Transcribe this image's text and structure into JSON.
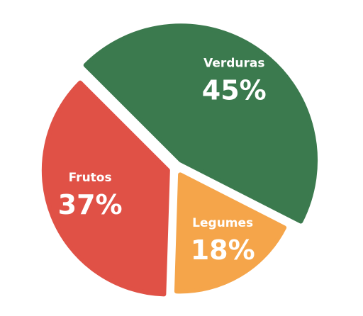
{
  "chart_data": {
    "type": "pie",
    "slices": [
      {
        "label": "Verduras",
        "value": 45,
        "display": "45%",
        "color": "#3b7a4e"
      },
      {
        "label": "Legumes",
        "value": 18,
        "display": "18%",
        "color": "#f5a54a"
      },
      {
        "label": "Frutos",
        "value": 37,
        "display": "37%",
        "color": "#e05146"
      }
    ],
    "legend": "none",
    "data_labels": "inside slices"
  }
}
